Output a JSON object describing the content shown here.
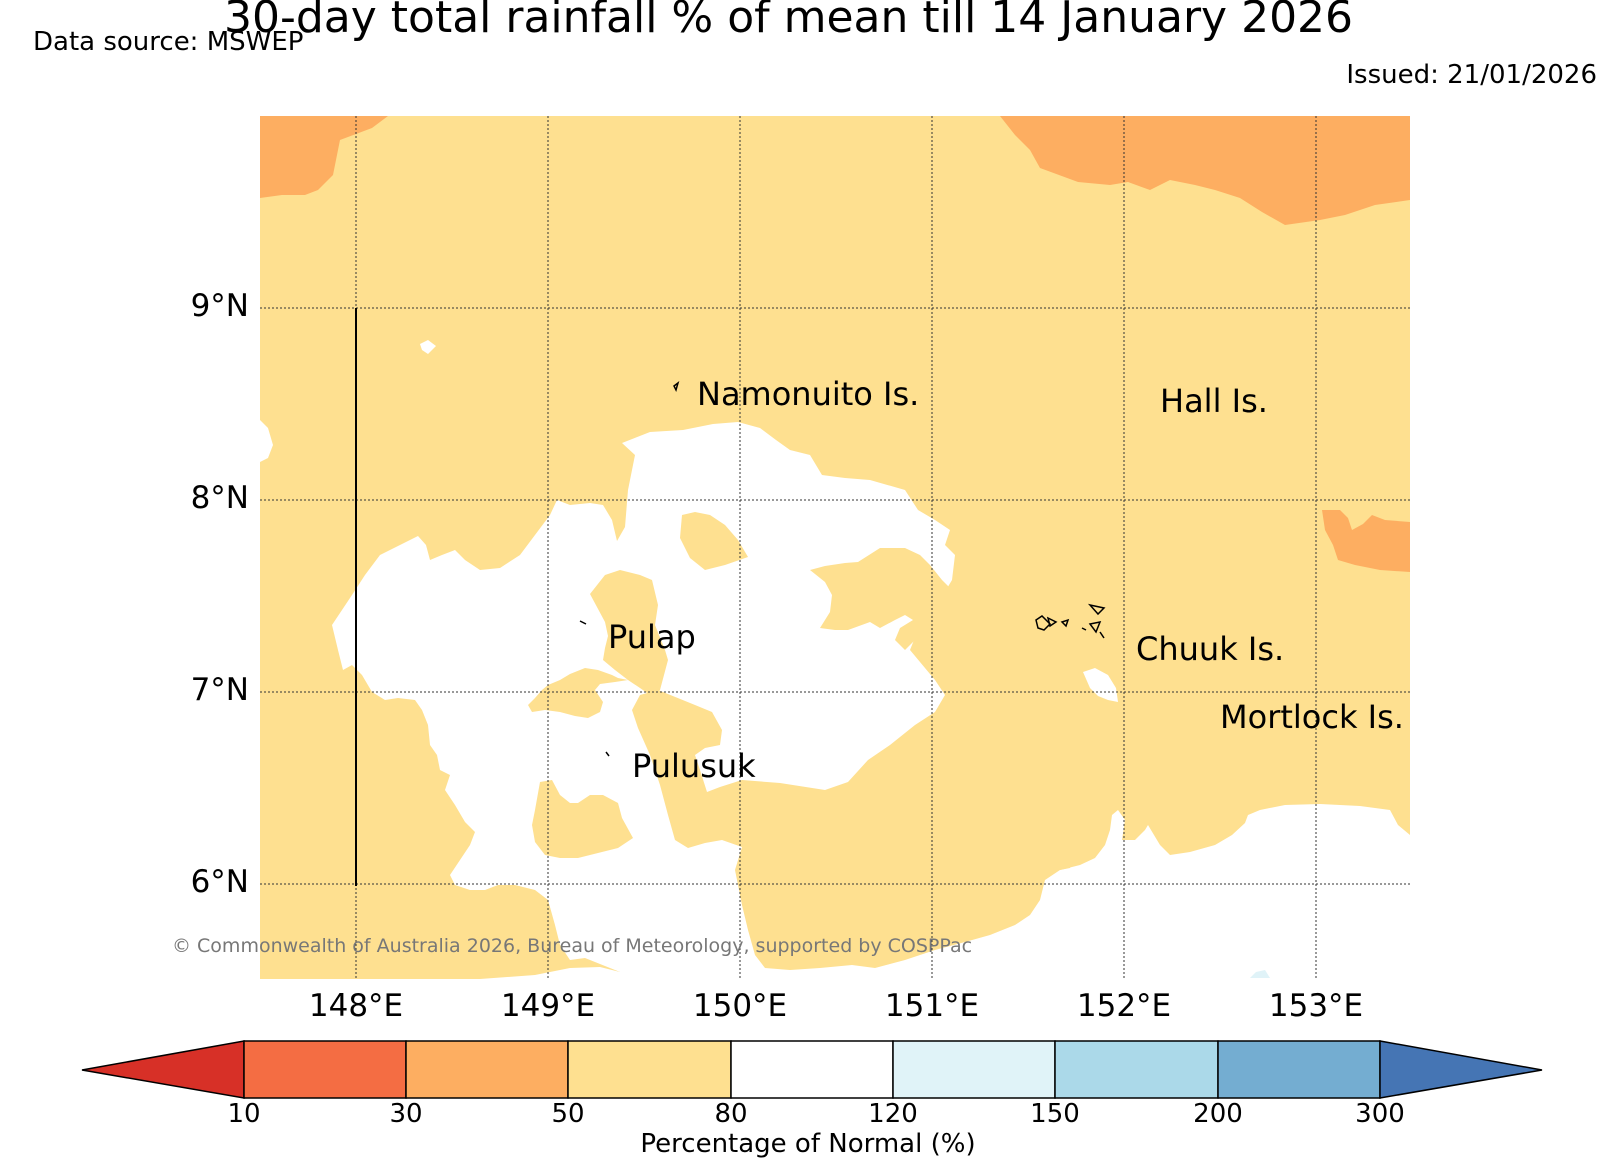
{
  "title": "30-day total rainfall % of mean till 14 January 2026",
  "data_source": "Data source: MSWEP",
  "issued": "Issued: 21/01/2026",
  "copyright": "© Commonwealth of Australia 2026, Bureau of Meteorology, supported by COSPPac",
  "map": {
    "lat_labels": [
      "9°N",
      "8°N",
      "7°N",
      "6°N"
    ],
    "lon_labels": [
      "148°E",
      "149°E",
      "150°E",
      "151°E",
      "152°E",
      "153°E"
    ],
    "places": [
      "Namonuito Is.",
      "Hall Is.",
      "Pulap",
      "Chuuk Is.",
      "Mortlock Is.",
      "Pulusuk"
    ]
  },
  "colorbar": {
    "title": "Percentage of Normal (%)",
    "ticks": [
      "10",
      "30",
      "50",
      "80",
      "120",
      "150",
      "200",
      "300"
    ],
    "colors": [
      "#d73027",
      "#f46d43",
      "#fdae61",
      "#fee090",
      "#ffffff",
      "#e0f3f8",
      "#abd9e9",
      "#74add1",
      "#4575b4"
    ]
  }
}
